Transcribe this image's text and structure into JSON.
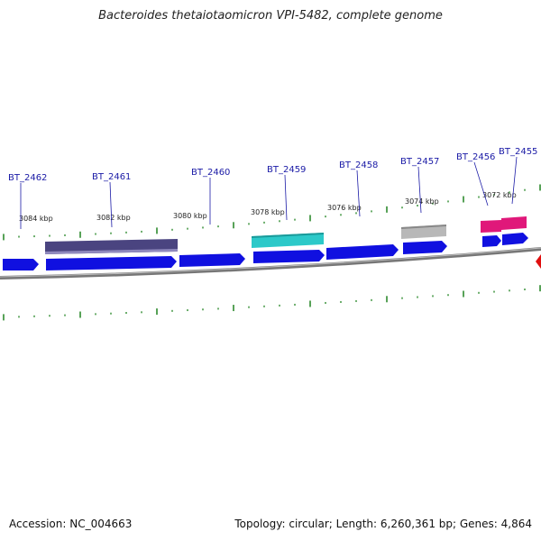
{
  "title": "Bacteroides thetaiotaomicron VPI-5482, complete genome",
  "footer": {
    "accession": "Accession: NC_004663",
    "summary": "Topology: circular; Length: 6,260,361 bp; Genes: 4,864"
  },
  "colors": {
    "cds": "#1010e0",
    "backbone": "#777777",
    "ticks": "#2e8b2e",
    "label": "#1a1aa6",
    "purple": "#4a4480",
    "cyan": "#2cc9c9",
    "gray": "#b8b8b8",
    "pink": "#e0187a",
    "red": "#e01010"
  },
  "scale_labels": [
    "3084 kbp",
    "3082 kbp",
    "3080 kbp",
    "3078 kbp",
    "3076 kbp",
    "3074 kbp",
    "3072 kbp"
  ],
  "gene_labels": [
    "BT_2462",
    "BT_2461",
    "BT_2460",
    "BT_2459",
    "BT_2458",
    "BT_2457",
    "BT_2456",
    "BT_2455"
  ]
}
